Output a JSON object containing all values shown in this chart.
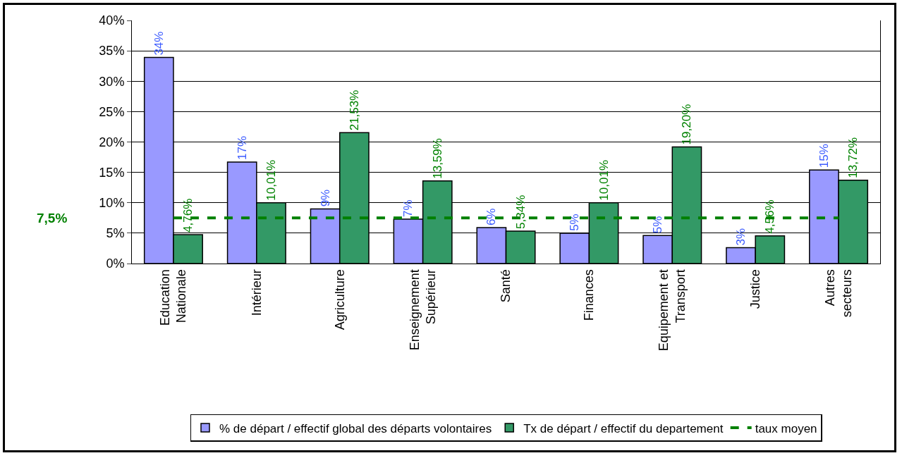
{
  "chart_data": {
    "type": "bar",
    "categories": [
      "Education Nationale",
      "Intérieur",
      "Agriculture",
      "Enseignement Supérieur",
      "Santé",
      "Finances",
      "Equipement et Transport",
      "Justice",
      "Autres secteurs"
    ],
    "series": [
      {
        "name": "% de départ / effectif global des départs volontaires",
        "color": "#9999ff",
        "values": [
          33.9,
          16.7,
          9.0,
          7.3,
          5.9,
          5.0,
          4.6,
          2.6,
          15.4
        ],
        "value_labels": [
          "34%",
          "17%",
          "9%",
          "7%",
          "6%",
          "5%",
          "5%",
          "3%",
          "15%"
        ]
      },
      {
        "name": "Tx de départ / effectif du departement",
        "color": "#339966",
        "values": [
          4.76,
          10.01,
          21.53,
          13.59,
          5.34,
          10.01,
          19.2,
          4.56,
          13.72
        ],
        "value_labels": [
          "4,76%",
          "10,01%",
          "21,53%",
          "13,59%",
          "5,34%",
          "10,01%",
          "19,20%",
          "4,56%",
          "13,72%"
        ]
      },
      {
        "name": "taux moyen",
        "type": "line",
        "color": "#008000",
        "line_style": "dashed",
        "marker": "none",
        "values": [
          7.5,
          7.5,
          7.5,
          7.5,
          7.5,
          7.5,
          7.5,
          7.5,
          7.5
        ]
      }
    ],
    "annotations": [
      "7,5%"
    ],
    "ylim": [
      0,
      40
    ],
    "yticks": [
      {
        "value": 0,
        "label": "0%"
      },
      {
        "value": 5,
        "label": "5%"
      },
      {
        "value": 10,
        "label": "10%"
      },
      {
        "value": 15,
        "label": "15%"
      },
      {
        "value": 20,
        "label": "20%"
      },
      {
        "value": 25,
        "label": "25%"
      },
      {
        "value": 30,
        "label": "30%"
      },
      {
        "value": 35,
        "label": "35%"
      },
      {
        "value": 40,
        "label": "40%"
      }
    ],
    "grid": "y",
    "legend": "bottom"
  }
}
